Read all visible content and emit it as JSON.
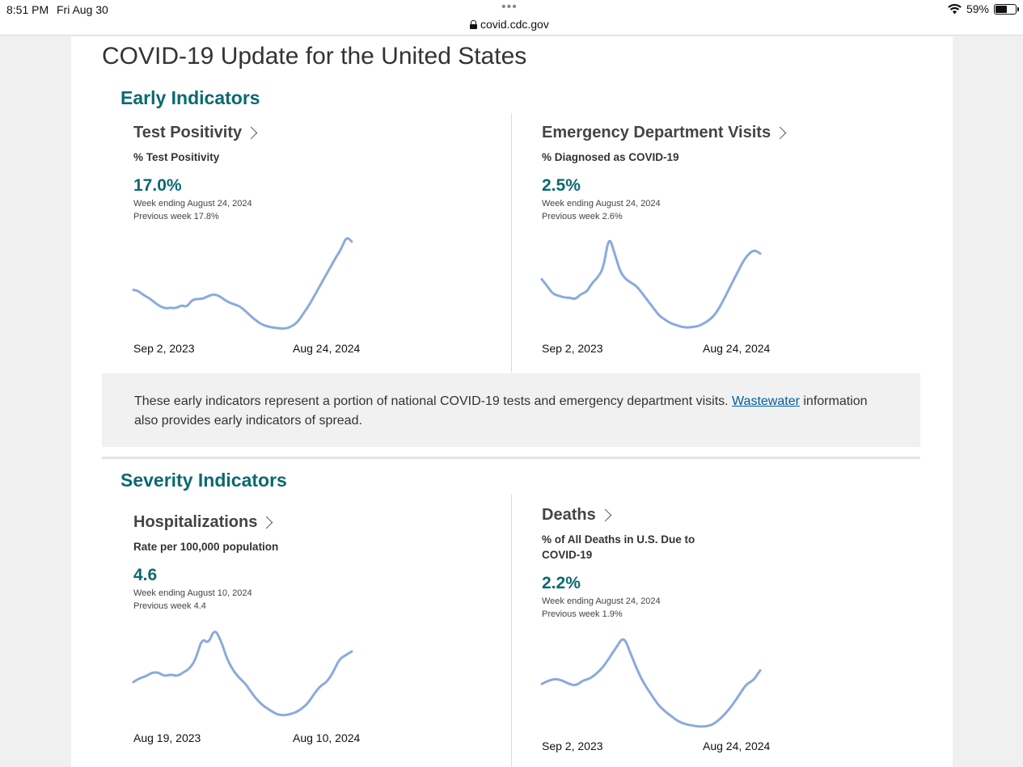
{
  "status_bar": {
    "time": "8:51 PM",
    "date": "Fri Aug 30",
    "url": "covid.cdc.gov",
    "battery": "59%"
  },
  "page": {
    "title": "COVID-19 Update for the United States"
  },
  "early": {
    "title": "Early Indicators",
    "info_text": "These early indicators represent a portion of national COVID-19 tests and emergency department visits.",
    "info_link": "Wastewater",
    "info_text_after": "information also provides early indicators of spread.",
    "cards": [
      {
        "title": "Test Positivity",
        "subtitle": "% Test Positivity",
        "value": "17.0%",
        "week": "Week ending August 24, 2024",
        "previous": "Previous week 17.8%",
        "start_label": "Sep 2, 2023",
        "end_label": "Aug 24, 2024"
      },
      {
        "title": "Emergency Department Visits",
        "subtitle": "% Diagnosed as COVID-19",
        "value": "2.5%",
        "week": "Week ending August 24, 2024",
        "previous": "Previous week 2.6%",
        "start_label": "Sep 2, 2023",
        "end_label": "Aug 24, 2024"
      }
    ]
  },
  "severity": {
    "title": "Severity Indicators",
    "cards": [
      {
        "title": "Hospitalizations",
        "subtitle": "Rate per 100,000 population",
        "value": "4.6",
        "week": "Week ending August 10, 2024",
        "previous": "Previous week 4.4",
        "start_label": "Aug 19, 2023",
        "end_label": "Aug 10, 2024"
      },
      {
        "title": "Deaths",
        "subtitle": "% of All Deaths in U.S. Due to COVID-19",
        "value": "2.2%",
        "week": "Week ending August 24, 2024",
        "previous": "Previous week 1.9%",
        "start_label": "Sep 2, 2023",
        "end_label": "Aug 24, 2024"
      }
    ]
  },
  "colors": {
    "accent": "#0b6970",
    "line": "#8aaade"
  },
  "chart_data": [
    {
      "type": "line",
      "series": [
        {
          "values": [
            9.4,
            9.2,
            8.5,
            8.1,
            7.4,
            6.8,
            6.5,
            6.6,
            6.5,
            7.0,
            6.7,
            7.8,
            8.0,
            8.0,
            8.4,
            8.7,
            8.5,
            7.9,
            7.4,
            7.1,
            6.8,
            6.1,
            5.3,
            4.6,
            4.0,
            3.7,
            3.5,
            3.4,
            3.3,
            3.4,
            3.8,
            4.5,
            5.8,
            7.0,
            8.5,
            10.0,
            11.5,
            13.0,
            14.5,
            15.8,
            17.8,
            17.0
          ]
        }
      ],
      "ylim": [
        3.0,
        18.0
      ]
    },
    {
      "type": "line",
      "series": [
        {
          "values": [
            1.8,
            1.6,
            1.4,
            1.35,
            1.3,
            1.3,
            1.25,
            1.4,
            1.45,
            1.7,
            1.85,
            2.1,
            3.0,
            2.5,
            2.0,
            1.8,
            1.7,
            1.6,
            1.4,
            1.2,
            1.0,
            0.8,
            0.7,
            0.6,
            0.55,
            0.5,
            0.48,
            0.5,
            0.52,
            0.6,
            0.7,
            0.85,
            1.1,
            1.4,
            1.7,
            2.0,
            2.3,
            2.5,
            2.6,
            2.5
          ]
        }
      ],
      "ylim": [
        0.4,
        3.0
      ]
    },
    {
      "type": "line",
      "series": [
        {
          "values": [
            3.0,
            3.2,
            3.3,
            3.5,
            3.5,
            3.3,
            3.4,
            3.3,
            3.5,
            3.7,
            4.2,
            5.3,
            5.0,
            5.8,
            5.2,
            4.2,
            3.6,
            3.2,
            2.9,
            2.4,
            2.0,
            1.7,
            1.5,
            1.3,
            1.25,
            1.3,
            1.4,
            1.6,
            1.9,
            2.4,
            2.8,
            3.0,
            3.5,
            4.2,
            4.4,
            4.6
          ]
        }
      ],
      "ylim": [
        1.0,
        6.0
      ]
    },
    {
      "type": "line",
      "series": [
        {
          "values": [
            1.8,
            1.9,
            1.95,
            1.9,
            1.8,
            1.75,
            1.9,
            1.95,
            2.1,
            2.3,
            2.6,
            2.9,
            3.2,
            2.7,
            2.2,
            1.8,
            1.5,
            1.2,
            1.0,
            0.85,
            0.7,
            0.62,
            0.58,
            0.55,
            0.55,
            0.6,
            0.75,
            0.95,
            1.2,
            1.5,
            1.8,
            1.9,
            2.2
          ]
        }
      ],
      "ylim": [
        0.5,
        3.3
      ]
    }
  ]
}
